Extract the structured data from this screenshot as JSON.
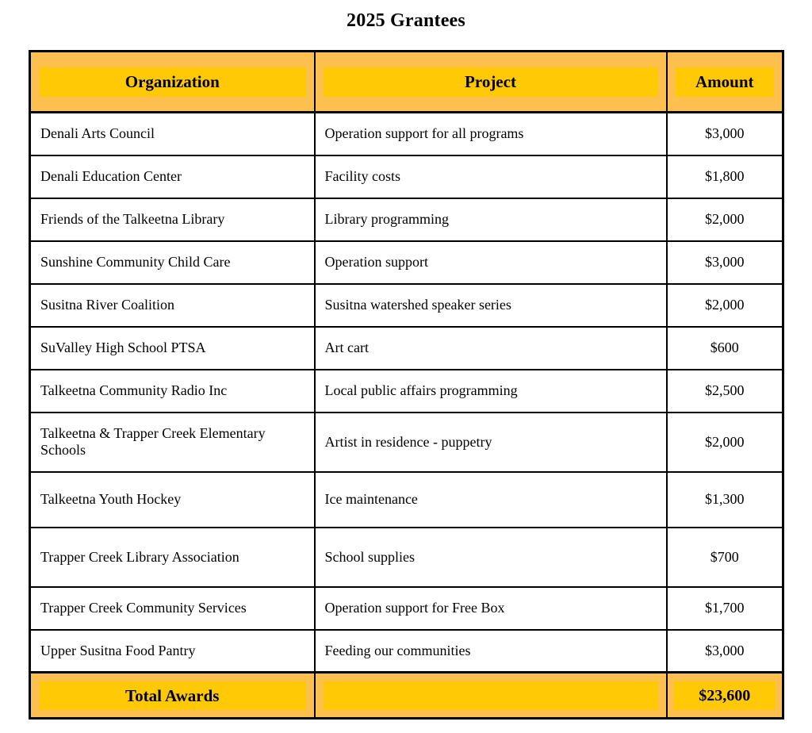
{
  "title": "2025 Grantees",
  "colors": {
    "header_fill": "#FDC04E",
    "highlight": "#FFC906",
    "border": "#000000",
    "text": "#000000",
    "row_bg": "#FFFFFF"
  },
  "table": {
    "columns": [
      "Organization",
      "Project",
      "Amount"
    ],
    "rows": [
      {
        "organization": "Denali Arts Council",
        "project": "Operation support for all programs",
        "amount": "$3,000"
      },
      {
        "organization": "Denali Education Center",
        "project": "Facility costs",
        "amount": "$1,800"
      },
      {
        "organization": "Friends of the Talkeetna Library",
        "project": "Library programming",
        "amount": "$2,000"
      },
      {
        "organization": "Sunshine Community Child Care",
        "project": "Operation support",
        "amount": "$3,000"
      },
      {
        "organization": "Susitna River Coalition",
        "project": "Susitna watershed speaker series",
        "amount": "$2,000"
      },
      {
        "organization": "SuValley High School PTSA",
        "project": "Art cart",
        "amount": "$600"
      },
      {
        "organization": "Talkeetna Community Radio Inc",
        "project": "Local public affairs programming",
        "amount": "$2,500"
      },
      {
        "organization": "Talkeetna & Trapper Creek Elementary Schools",
        "project": "Artist in residence - puppetry",
        "amount": "$2,000"
      },
      {
        "organization": "Talkeetna Youth Hockey",
        "project": "Ice maintenance",
        "amount": "$1,300"
      },
      {
        "organization": "Trapper Creek Library Association",
        "project": "School supplies",
        "amount": "$700"
      },
      {
        "organization": "Trapper Creek Community Services",
        "project": "Operation support for Free Box",
        "amount": "$1,700"
      },
      {
        "organization": "Upper Susitna Food Pantry",
        "project": "Feeding our communities",
        "amount": "$3,000"
      }
    ],
    "total": {
      "label": "Total Awards",
      "amount": "$23,600"
    }
  }
}
